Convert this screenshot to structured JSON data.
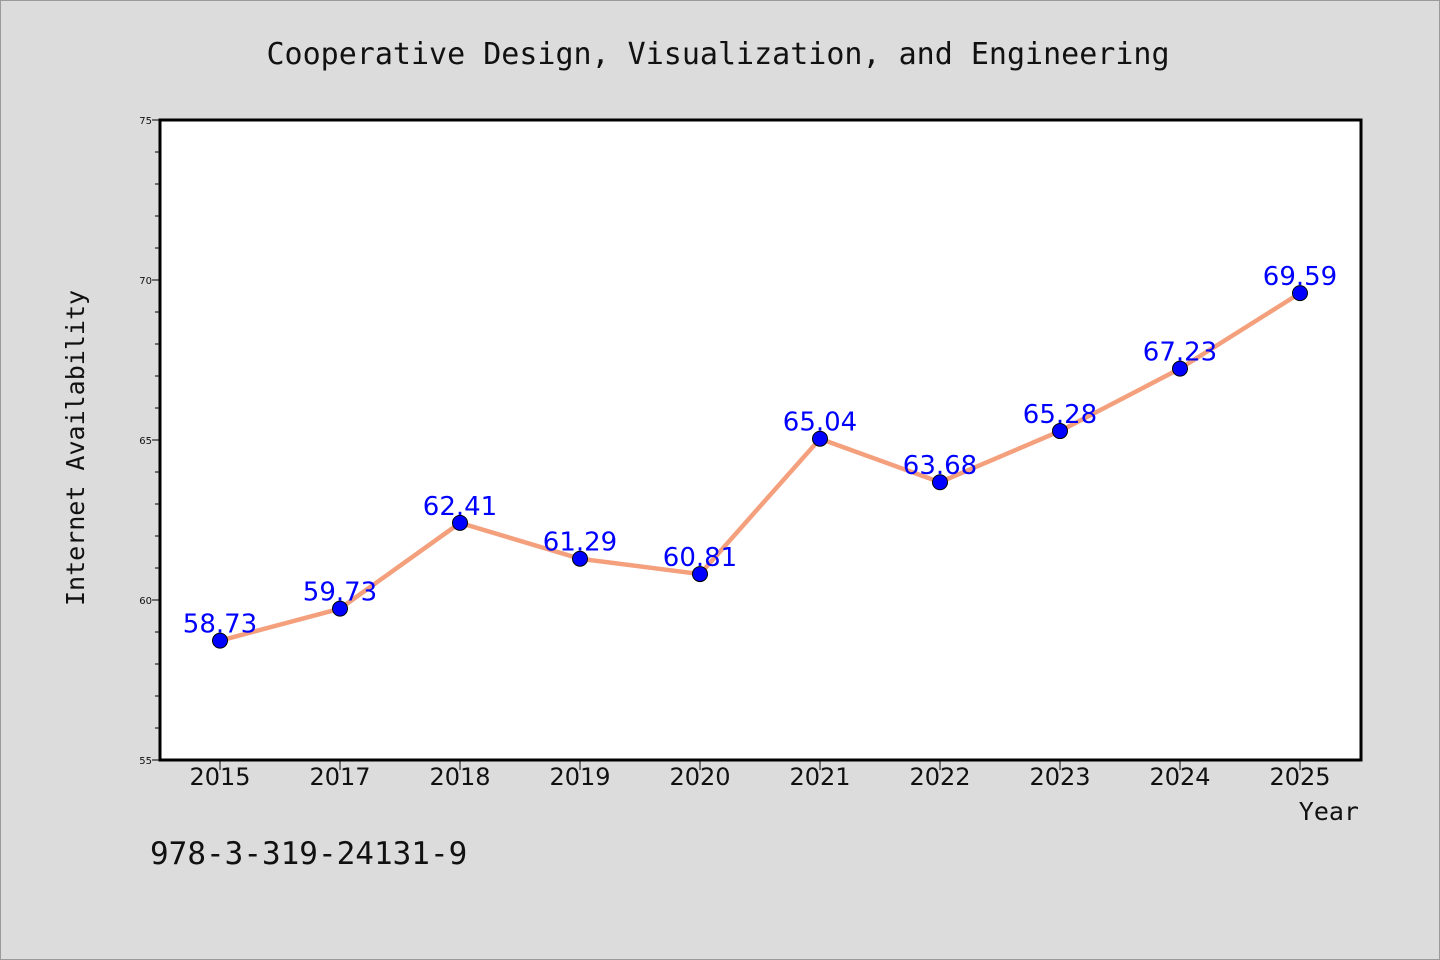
{
  "chart_data": {
    "type": "line",
    "title": "Cooperative Design, Visualization, and Engineering",
    "xlabel": "Year",
    "ylabel": "Internet Availability",
    "categories": [
      "2015",
      "2017",
      "2018",
      "2019",
      "2020",
      "2021",
      "2022",
      "2023",
      "2024",
      "2025"
    ],
    "series": [
      {
        "values": [
          58.73,
          59.73,
          62.41,
          61.29,
          60.81,
          65.04,
          63.68,
          65.28,
          67.23,
          69.59
        ],
        "data_labels": [
          "58.73",
          "59.73",
          "62.41",
          "61.29",
          "60.81",
          "65.04",
          "63.68",
          "65.28",
          "67.23",
          "69.59"
        ]
      }
    ],
    "ylim": [
      55,
      75
    ],
    "yticks": [
      "55",
      "60",
      "65",
      "70",
      "75"
    ],
    "grid": false,
    "legend": "none"
  },
  "annotation": {
    "isbn": "978-3-319-24131-9"
  },
  "colors": {
    "background": "#dcdcdc",
    "plot_background": "#ffffff",
    "line": "#f4a07c",
    "marker": "#0000ff",
    "data_label": "#0000ff"
  }
}
